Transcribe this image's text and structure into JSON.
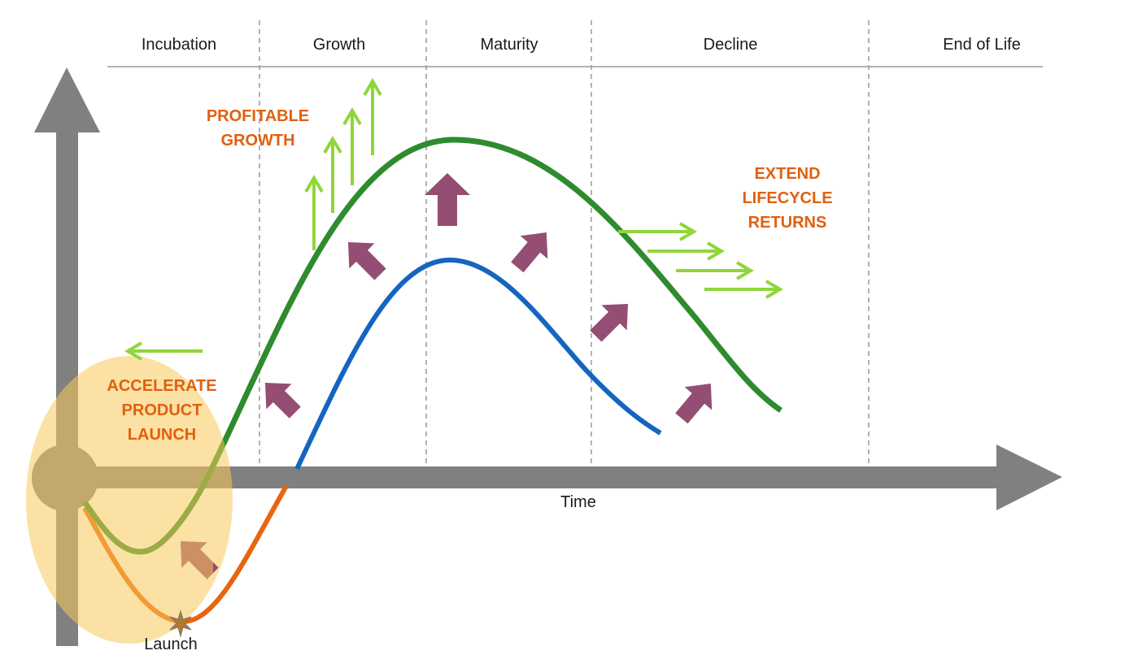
{
  "phases": [
    "Incubation",
    "Growth",
    "Maturity",
    "Decline",
    "End of Life"
  ],
  "axis": {
    "x_label": "Time",
    "launch_label": "Launch"
  },
  "callouts": {
    "profitable_growth": [
      "PROFITABLE",
      "GROWTH"
    ],
    "extend_lifecycle": [
      "EXTEND",
      "LIFECYCLE",
      "RETURNS"
    ],
    "accelerate_launch": [
      "ACCELERATE",
      "PRODUCT",
      "LAUNCH"
    ]
  },
  "colors": {
    "axis": "#808080",
    "green_curve": "#2e8b2e",
    "blue_curve": "#1565c0",
    "orange_curve": "#e8650f",
    "light_green_arrow": "#8fd63a",
    "purple_arrow": "#944e74",
    "callout_text": "#e06010",
    "callout_accent": "#c00000",
    "highlight_ellipse": "#f8c95a",
    "divider": "#999999"
  }
}
